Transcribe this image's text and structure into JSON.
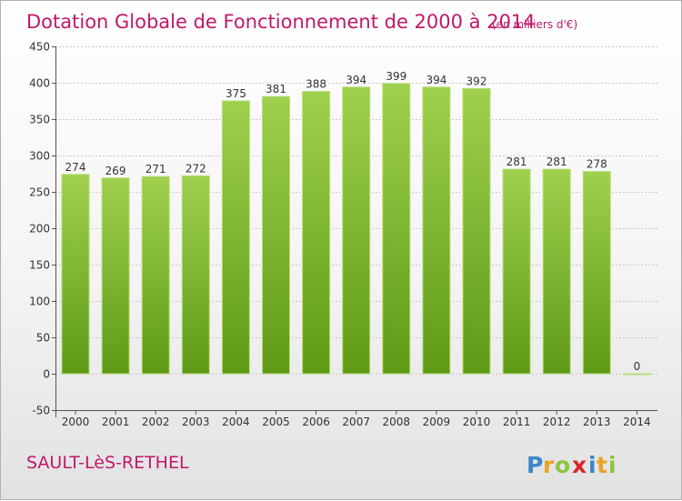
{
  "chart_data": {
    "type": "bar",
    "title": "Dotation Globale de Fonctionnement de 2000 à 2014",
    "subtitle": "(en milliers d'€)",
    "xlabel": "",
    "ylabel": "",
    "categories": [
      "2000",
      "2001",
      "2002",
      "2003",
      "2004",
      "2005",
      "2006",
      "2007",
      "2008",
      "2009",
      "2010",
      "2011",
      "2012",
      "2013",
      "2014"
    ],
    "values": [
      274,
      269,
      271,
      272,
      375,
      381,
      388,
      394,
      399,
      394,
      392,
      281,
      281,
      278,
      0
    ],
    "data_labels": [
      "274",
      "269",
      "271",
      "272",
      "375",
      "381",
      "388",
      "394",
      "399",
      "394",
      "392",
      "281",
      "281",
      "278",
      "0"
    ],
    "ylim": [
      -50,
      450
    ],
    "yticks": [
      "450",
      "400",
      "350",
      "300",
      "250",
      "200",
      "150",
      "100",
      "50",
      "0",
      "-50"
    ],
    "ytick_values": [
      450,
      400,
      350,
      300,
      250,
      200,
      150,
      100,
      50,
      0,
      -50
    ],
    "grid": true,
    "legend": "none",
    "bar_color_top": "#9fd04e",
    "bar_color_bottom": "#5e9a16"
  },
  "footer": {
    "commune": "SAULT-LèS-RETHEL",
    "brand": "Proxiti"
  }
}
